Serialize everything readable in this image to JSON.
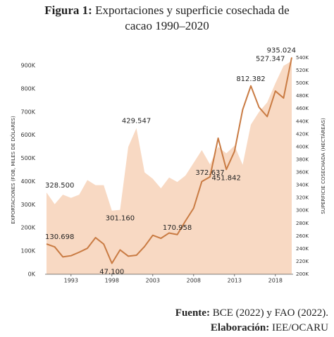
{
  "chart_data": {
    "type": "line-area",
    "title_prefix": "Figura 1:",
    "title": "Exportaciones y superficie cosechada de cacao 1990–2020",
    "y_label": "EXPORTACIONES (FOB, MILES DE DÓLARES)",
    "y2_label": "SUPERFICIE COSECHADA (HECTÁREAS)",
    "x": [
      1990,
      1991,
      1992,
      1993,
      1994,
      1995,
      1996,
      1997,
      1998,
      1999,
      2000,
      2001,
      2002,
      2003,
      2004,
      2005,
      2006,
      2007,
      2008,
      2009,
      2010,
      2011,
      2012,
      2013,
      2014,
      2015,
      2016,
      2017,
      2018,
      2019,
      2020
    ],
    "xlim": [
      1990,
      2020
    ],
    "xticks": [
      1993,
      1998,
      2003,
      2008,
      2013,
      2018
    ],
    "ylim": [
      0,
      900
    ],
    "yticks": [
      {
        "value": 0,
        "label": "0K"
      },
      {
        "value": 100,
        "label": "100K"
      },
      {
        "value": 200,
        "label": "200K"
      },
      {
        "value": 300,
        "label": "300K"
      },
      {
        "value": 400,
        "label": "400K"
      },
      {
        "value": 500,
        "label": "500K"
      },
      {
        "value": 600,
        "label": "600K"
      },
      {
        "value": 700,
        "label": "700K"
      },
      {
        "value": 800,
        "label": "800K"
      },
      {
        "value": 900,
        "label": "900K"
      }
    ],
    "y2lim": [
      200,
      540
    ],
    "y2ticks": [
      {
        "value": 200,
        "label": "200K"
      },
      {
        "value": 220,
        "label": "220K"
      },
      {
        "value": 240,
        "label": "240K"
      },
      {
        "value": 260,
        "label": "260K"
      },
      {
        "value": 280,
        "label": "280K"
      },
      {
        "value": 300,
        "label": "300K"
      },
      {
        "value": 320,
        "label": "320K"
      },
      {
        "value": 340,
        "label": "340K"
      },
      {
        "value": 360,
        "label": "360K"
      },
      {
        "value": 380,
        "label": "380K"
      },
      {
        "value": 400,
        "label": "400K"
      },
      {
        "value": 420,
        "label": "420K"
      },
      {
        "value": 440,
        "label": "440K"
      },
      {
        "value": 460,
        "label": "460K"
      },
      {
        "value": 480,
        "label": "480K"
      },
      {
        "value": 500,
        "label": "500K"
      },
      {
        "value": 520,
        "label": "520K"
      },
      {
        "value": 540,
        "label": "540K"
      }
    ],
    "series": [
      {
        "type": "area",
        "axis": "y2",
        "color": "#f8d9c3",
        "values": [
          328.5,
          310,
          325,
          320,
          325,
          348,
          340,
          340,
          300,
          301.16,
          400,
          429.547,
          360,
          350,
          335,
          352,
          345,
          355,
          375,
          395,
          372.637,
          400,
          390,
          402,
          372,
          435,
          455,
          470,
          500,
          527.347,
          535
        ],
        "value_labels": [
          "328.500",
          null,
          null,
          null,
          null,
          null,
          null,
          null,
          null,
          "301.160",
          null,
          "429.547",
          null,
          null,
          null,
          null,
          null,
          null,
          null,
          null,
          "372.637",
          null,
          null,
          null,
          null,
          null,
          null,
          null,
          null,
          "527.347",
          null
        ]
      },
      {
        "type": "line",
        "axis": "y",
        "color": "#c97b43",
        "values": [
          130.698,
          118,
          75,
          80,
          95,
          112,
          158,
          130,
          47.1,
          105,
          78,
          82,
          120,
          168,
          155,
          178,
          170.958,
          230,
          285,
          400,
          420,
          587,
          451.842,
          530,
          710,
          812.382,
          720,
          680,
          790,
          760,
          935.024
        ],
        "value_labels": [
          "130.698",
          null,
          null,
          null,
          null,
          null,
          null,
          null,
          "47.100",
          null,
          null,
          null,
          null,
          null,
          null,
          null,
          "170.958",
          null,
          null,
          null,
          null,
          null,
          "451.842",
          null,
          null,
          "812.382",
          null,
          null,
          null,
          null,
          "935.024"
        ]
      }
    ]
  },
  "footer": {
    "source_label": "Fuente:",
    "source": "BCE (2022) y FAO (2022).",
    "credit_label": "Elaboración:",
    "credit": "IEE/OCARU"
  }
}
